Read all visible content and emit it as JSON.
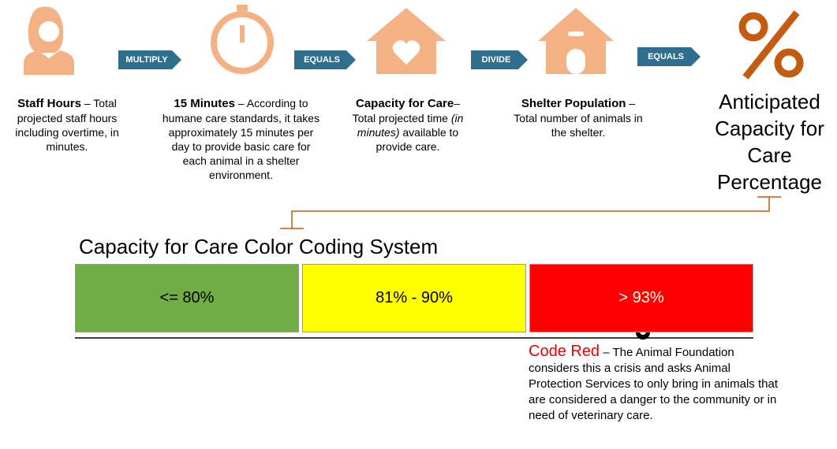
{
  "steps": [
    {
      "title": "Staff Hours",
      "text": "– Total projected staff hours including overtime, in minutes."
    },
    {
      "title": "15 Minutes",
      "text": "– According to humane care standards, it takes approximately 15 minutes per day to provide basic care for each animal in a shelter environment."
    },
    {
      "title": "Capacity for Care",
      "text": "–",
      "text_before": "Total projected time",
      "text_italic": "(in minutes)",
      "text_after": "available to provide care."
    },
    {
      "title": "Shelter Population",
      "text": "– Total number of animals in the shelter."
    }
  ],
  "operators": [
    "MULTIPLY",
    "EQUALS",
    "DIVIDE",
    "EQUALS"
  ],
  "result": "Anticipated Capacity for Care Percentage",
  "color_coding": {
    "title": "Capacity for Care Color Coding System",
    "bands": [
      "<= 80%",
      "81% - 90%",
      "> 93%"
    ]
  },
  "code_red": {
    "title": "Code Red",
    "text": "– The Animal Foundation considers this a crisis and asks Animal Protection Services to only bring in animals that are considered a danger to the community or in need of veterinary care."
  }
}
